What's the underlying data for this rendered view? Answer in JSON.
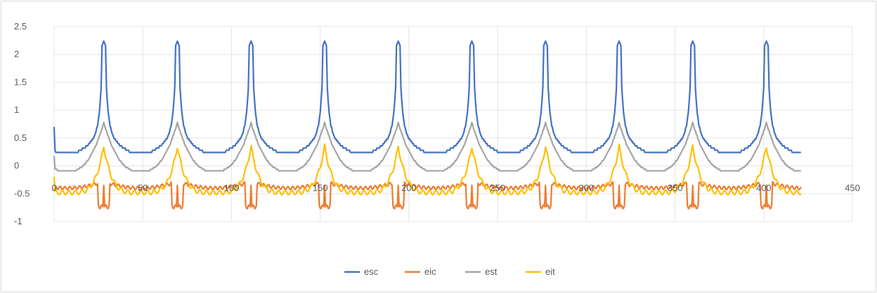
{
  "chart_data": {
    "type": "line",
    "title": "",
    "xlabel": "",
    "ylabel": "",
    "xlim": [
      0,
      450
    ],
    "ylim": [
      -1,
      2.5
    ],
    "x_ticks": [
      "0",
      "50",
      "100",
      "150",
      "200",
      "250",
      "300",
      "350",
      "400",
      "450"
    ],
    "y_ticks": [
      "2.5",
      "2",
      "1.5",
      "1",
      "0.5",
      "0",
      "-0.5",
      "-1"
    ],
    "grid": true,
    "legend_position": "bottom",
    "x_data_range": [
      0,
      421
    ],
    "cycle_count": 10,
    "cycle_period": 41.5,
    "first_peak_x": 28,
    "series": [
      {
        "name": "esc",
        "color": "#4472c4",
        "base": 0.35,
        "peak": 2.22,
        "valley_min": 0.22,
        "first_value": 0.7
      },
      {
        "name": "eic",
        "color": "#ed7d31",
        "base": -0.4,
        "peak": -0.2,
        "dip": -0.8,
        "first_value": -0.45
      },
      {
        "name": "est",
        "color": "#a5a5a5",
        "base": -0.05,
        "peak": 0.78,
        "valley_min": -0.1,
        "first_value": 0.18
      },
      {
        "name": "eit",
        "color": "#ffc000",
        "base": -0.45,
        "peak": 0.35,
        "valley_min": -0.48,
        "first_value": -0.2
      }
    ]
  }
}
